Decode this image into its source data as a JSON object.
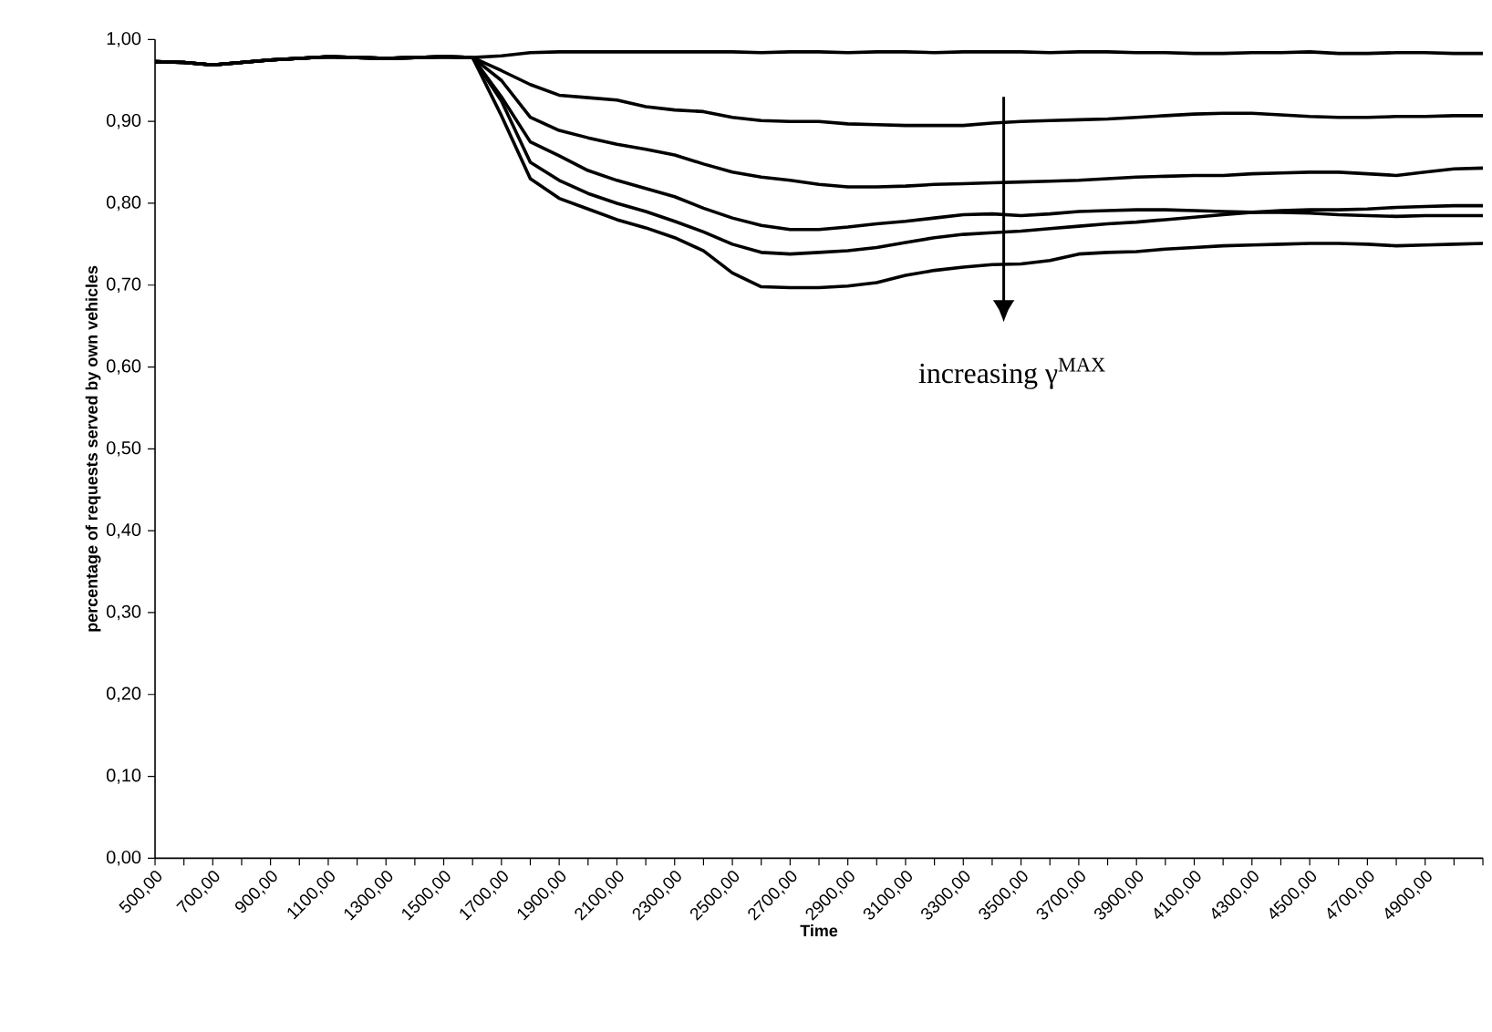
{
  "chart_data": {
    "type": "line",
    "xlabel": "Time",
    "ylabel": "percentage of requests served by own vehicles",
    "categories": [
      "500,00",
      null,
      "700,00",
      null,
      "900,00",
      null,
      "1100,00",
      null,
      "1300,00",
      null,
      "1500,00",
      null,
      "1700,00",
      null,
      "1900,00",
      null,
      "2100,00",
      null,
      "2300,00",
      null,
      "2500,00",
      null,
      "2700,00",
      null,
      "2900,00",
      null,
      "3100,00",
      null,
      "3300,00",
      null,
      "3500,00",
      null,
      "3700,00",
      null,
      "3900,00",
      null,
      "4100,00",
      null,
      "4300,00",
      null,
      "4500,00",
      null,
      "4700,00",
      null,
      "4900,00",
      null,
      null
    ],
    "series": [
      {
        "color": "#000000",
        "values": [
          0.973,
          0.972,
          0.969,
          0.972,
          0.975,
          0.977,
          0.979,
          0.978,
          0.977,
          0.978,
          0.979,
          0.978,
          0.98,
          0.984,
          0.985,
          0.985,
          0.985,
          0.985,
          0.985,
          0.985,
          0.985,
          0.984,
          0.985,
          0.985,
          0.984,
          0.985,
          0.985,
          0.984,
          0.985,
          0.985,
          0.985,
          0.984,
          0.985,
          0.985,
          0.984,
          0.984,
          0.983,
          0.983,
          0.984,
          0.984,
          0.985,
          0.983,
          0.983,
          0.984,
          0.984,
          0.983,
          0.983
        ]
      },
      {
        "color": "#000000",
        "values": [
          0.973,
          0.972,
          0.969,
          0.972,
          0.975,
          0.977,
          0.979,
          0.978,
          0.977,
          0.978,
          0.979,
          0.978,
          0.962,
          0.945,
          0.932,
          0.929,
          0.926,
          0.918,
          0.914,
          0.912,
          0.905,
          0.901,
          0.9,
          0.9,
          0.897,
          0.896,
          0.895,
          0.895,
          0.895,
          0.898,
          0.9,
          0.901,
          0.902,
          0.903,
          0.905,
          0.907,
          0.909,
          0.91,
          0.91,
          0.908,
          0.906,
          0.905,
          0.905,
          0.906,
          0.906,
          0.907,
          0.907
        ]
      },
      {
        "color": "#000000",
        "values": [
          0.973,
          0.972,
          0.969,
          0.972,
          0.975,
          0.977,
          0.979,
          0.978,
          0.977,
          0.978,
          0.979,
          0.978,
          0.95,
          0.905,
          0.889,
          0.88,
          0.872,
          0.866,
          0.859,
          0.848,
          0.838,
          0.832,
          0.828,
          0.823,
          0.82,
          0.82,
          0.821,
          0.823,
          0.824,
          0.825,
          0.826,
          0.827,
          0.828,
          0.83,
          0.832,
          0.833,
          0.834,
          0.834,
          0.836,
          0.837,
          0.838,
          0.838,
          0.836,
          0.834,
          0.838,
          0.842,
          0.843
        ]
      },
      {
        "color": "#000000",
        "values": [
          0.973,
          0.972,
          0.969,
          0.972,
          0.975,
          0.977,
          0.979,
          0.978,
          0.977,
          0.978,
          0.979,
          0.978,
          0.93,
          0.875,
          0.858,
          0.84,
          0.828,
          0.818,
          0.808,
          0.794,
          0.782,
          0.773,
          0.768,
          0.768,
          0.771,
          0.775,
          0.778,
          0.782,
          0.786,
          0.787,
          0.785,
          0.787,
          0.79,
          0.791,
          0.792,
          0.792,
          0.791,
          0.79,
          0.789,
          0.789,
          0.788,
          0.786,
          0.785,
          0.784,
          0.785,
          0.785,
          0.785
        ]
      },
      {
        "color": "#000000",
        "values": [
          0.973,
          0.972,
          0.969,
          0.972,
          0.975,
          0.977,
          0.979,
          0.978,
          0.977,
          0.978,
          0.979,
          0.978,
          0.925,
          0.85,
          0.828,
          0.812,
          0.8,
          0.79,
          0.778,
          0.765,
          0.75,
          0.74,
          0.738,
          0.74,
          0.742,
          0.746,
          0.752,
          0.758,
          0.762,
          0.764,
          0.766,
          0.769,
          0.772,
          0.775,
          0.777,
          0.78,
          0.783,
          0.786,
          0.789,
          0.791,
          0.792,
          0.792,
          0.793,
          0.795,
          0.796,
          0.797,
          0.797
        ]
      },
      {
        "color": "#000000",
        "values": [
          0.973,
          0.972,
          0.969,
          0.972,
          0.975,
          0.977,
          0.979,
          0.978,
          0.977,
          0.978,
          0.979,
          0.978,
          0.907,
          0.83,
          0.806,
          0.793,
          0.78,
          0.77,
          0.758,
          0.742,
          0.715,
          0.698,
          0.697,
          0.697,
          0.699,
          0.703,
          0.712,
          0.718,
          0.722,
          0.725,
          0.726,
          0.73,
          0.738,
          0.74,
          0.741,
          0.744,
          0.746,
          0.748,
          0.749,
          0.75,
          0.751,
          0.751,
          0.75,
          0.748,
          0.749,
          0.75,
          0.751
        ]
      }
    ],
    "ylim": [
      0,
      1
    ],
    "yticks": [
      {
        "value": 0,
        "label": "0,00"
      },
      {
        "value": 0.1,
        "label": "0,10"
      },
      {
        "value": 0.2,
        "label": "0,20"
      },
      {
        "value": 0.3,
        "label": "0,30"
      },
      {
        "value": 0.4,
        "label": "0,40"
      },
      {
        "value": 0.5,
        "label": "0,50"
      },
      {
        "value": 0.6,
        "label": "0,60"
      },
      {
        "value": 0.7,
        "label": "0,70"
      },
      {
        "value": 0.8,
        "label": "0,80"
      },
      {
        "value": 0.9,
        "label": "0,90"
      },
      {
        "value": 1,
        "label": "1,00"
      }
    ],
    "marker": "none",
    "line_style": "solid",
    "annotations": [
      "increasing γ$^{MAX}$"
    ]
  }
}
